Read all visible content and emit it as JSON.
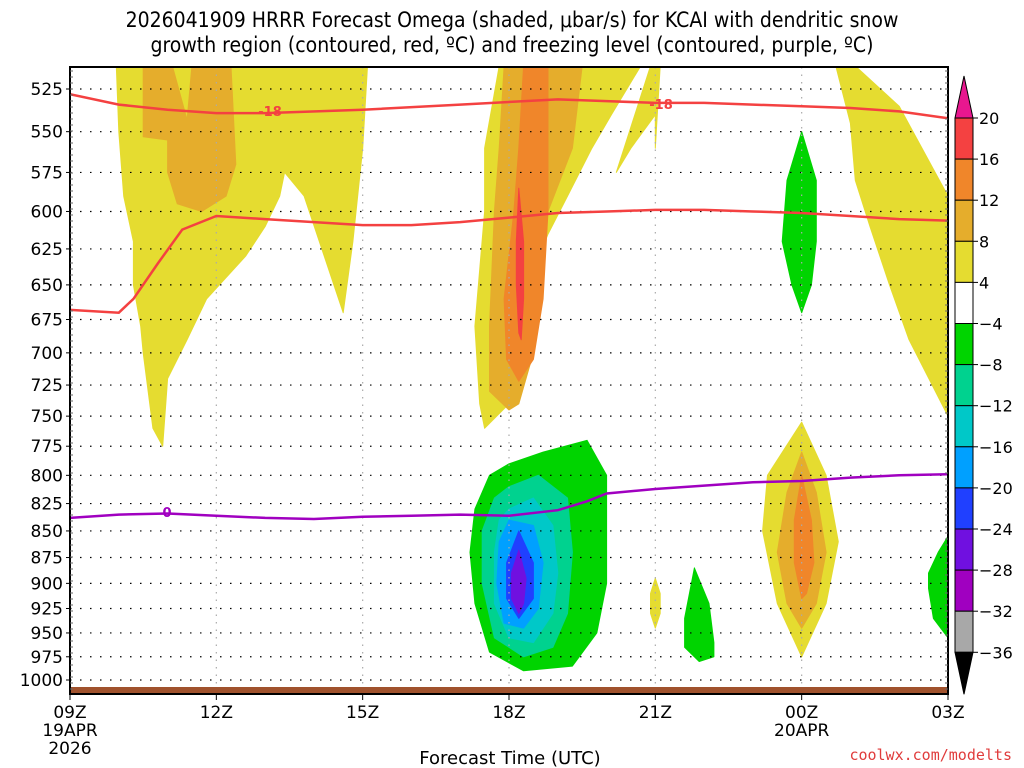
{
  "chart_data": {
    "type": "heatmap",
    "title_line1": "2026041909 HRRR Forecast Omega (shaded, μbar/s) for KCAI with dendritic snow",
    "title_line2": "growth region (contoured, red, ºC) and freezing level (contoured, purple, ºC)",
    "xlabel": "Forecast Time (UTC)",
    "ylabel": "",
    "x_hours": [
      0,
      18
    ],
    "x_ticks": [
      {
        "hour": 0,
        "label": "09Z",
        "sub1": "19APR",
        "sub2": "2026"
      },
      {
        "hour": 3,
        "label": "12Z",
        "sub1": "",
        "sub2": ""
      },
      {
        "hour": 6,
        "label": "15Z",
        "sub1": "",
        "sub2": ""
      },
      {
        "hour": 9,
        "label": "18Z",
        "sub1": "",
        "sub2": ""
      },
      {
        "hour": 12,
        "label": "21Z",
        "sub1": "",
        "sub2": ""
      },
      {
        "hour": 15,
        "label": "00Z",
        "sub1": "20APR",
        "sub2": ""
      },
      {
        "hour": 18,
        "label": "03Z",
        "sub1": "",
        "sub2": ""
      }
    ],
    "y_ticks": [
      525,
      550,
      575,
      600,
      625,
      650,
      675,
      700,
      725,
      750,
      775,
      800,
      825,
      850,
      875,
      900,
      925,
      950,
      975,
      1000
    ],
    "ylim": [
      512,
      1010
    ],
    "grid": true,
    "colorbar": {
      "levels": [
        -36,
        -32,
        -28,
        -24,
        -20,
        -16,
        -12,
        -8,
        -4,
        4,
        8,
        12,
        16,
        20
      ],
      "labels": [
        "20",
        "16",
        "12",
        "8",
        "4",
        "−4",
        "−8",
        "−12",
        "−16",
        "−20",
        "−24",
        "−28",
        "−32",
        "−36"
      ],
      "colors": {
        "above_20": "#e8178f",
        "16_20": "#f44141",
        "12_16": "#f0862a",
        "8_12": "#e5ad2c",
        "4_8": "#e5dc30",
        "-4_4": "#ffffff",
        "-8_-4": "#00d400",
        "-12_-8": "#00d28f",
        "-16_-12": "#00c8c8",
        "-20_-16": "#00a0ff",
        "-24_-20": "#2040ff",
        "-28_-24": "#7010e0",
        "-32_-28": "#a000c0",
        "-36_-32": "#a8a8a8",
        "below_-36": "#000000"
      },
      "position": "right"
    },
    "contours": {
      "dgz_label": "-18",
      "dgz_color": "#f44141",
      "dgz_upper": [
        [
          0,
          528
        ],
        [
          1,
          534
        ],
        [
          2,
          537
        ],
        [
          3,
          539
        ],
        [
          4,
          539
        ],
        [
          6,
          537
        ],
        [
          8,
          534
        ],
        [
          10,
          531
        ],
        [
          11,
          532
        ],
        [
          12,
          533
        ],
        [
          13,
          533
        ],
        [
          14,
          534
        ],
        [
          15,
          535
        ],
        [
          16,
          536
        ],
        [
          17,
          538
        ],
        [
          18,
          542
        ]
      ],
      "dgz_lower": [
        [
          0,
          668
        ],
        [
          1,
          670
        ],
        [
          1.3,
          660
        ],
        [
          1.8,
          635
        ],
        [
          2.3,
          612
        ],
        [
          3,
          603
        ],
        [
          4,
          605
        ],
        [
          6,
          609
        ],
        [
          7,
          609
        ],
        [
          8,
          607
        ],
        [
          9,
          604
        ],
        [
          10,
          601
        ],
        [
          11,
          600
        ],
        [
          12,
          599
        ],
        [
          13,
          599
        ],
        [
          14,
          600
        ],
        [
          15,
          601
        ],
        [
          16,
          603
        ],
        [
          17,
          605
        ],
        [
          18,
          606
        ]
      ],
      "freezing_label": "0",
      "freezing_color": "#a000c0",
      "freezing_level": [
        [
          0,
          838
        ],
        [
          1,
          835
        ],
        [
          2,
          834
        ],
        [
          3,
          836
        ],
        [
          4,
          838
        ],
        [
          5,
          839
        ],
        [
          6,
          837
        ],
        [
          7,
          836
        ],
        [
          8,
          835
        ],
        [
          9,
          836
        ],
        [
          10,
          831
        ],
        [
          10.6,
          823
        ],
        [
          11,
          816
        ],
        [
          12,
          812
        ],
        [
          13,
          809
        ],
        [
          14,
          806
        ],
        [
          15,
          805
        ],
        [
          16,
          802
        ],
        [
          17,
          800
        ],
        [
          18,
          799
        ]
      ]
    },
    "shaded_regions": [
      {
        "name": "yellow-upper-left",
        "level": "4_8",
        "points": [
          [
            0.95,
            512
          ],
          [
            6.1,
            512
          ],
          [
            6.0,
            560
          ],
          [
            5.8,
            620
          ],
          [
            5.6,
            670
          ],
          [
            4.8,
            590
          ],
          [
            4.4,
            575
          ],
          [
            4.3,
            590
          ],
          [
            4.0,
            610
          ],
          [
            3.6,
            630
          ],
          [
            2.8,
            660
          ],
          [
            2.4,
            690
          ],
          [
            2.0,
            720
          ],
          [
            1.9,
            775
          ],
          [
            1.7,
            760
          ],
          [
            1.5,
            700
          ],
          [
            1.45,
            680
          ],
          [
            1.3,
            650
          ],
          [
            1.3,
            620
          ],
          [
            1.1,
            590
          ],
          [
            1.0,
            550
          ]
        ]
      },
      {
        "name": "orange-upper-left",
        "level": "8_12",
        "points": [
          [
            1.5,
            512
          ],
          [
            2.1,
            512
          ],
          [
            2.4,
            543
          ],
          [
            2.5,
            512
          ],
          [
            3.3,
            512
          ],
          [
            3.4,
            570
          ],
          [
            3.2,
            590
          ],
          [
            2.7,
            600
          ],
          [
            2.2,
            595
          ],
          [
            2.0,
            575
          ],
          [
            2.0,
            555
          ],
          [
            1.5,
            553
          ]
        ]
      },
      {
        "name": "yellow-19z-column",
        "level": "4_8",
        "points": [
          [
            8.8,
            512
          ],
          [
            11.7,
            512
          ],
          [
            11.1,
            540
          ],
          [
            10.7,
            560
          ],
          [
            10.2,
            590
          ],
          [
            9.8,
            615
          ],
          [
            9.5,
            640
          ],
          [
            9.3,
            680
          ],
          [
            9.0,
            740
          ],
          [
            8.5,
            760
          ],
          [
            8.4,
            740
          ],
          [
            8.3,
            680
          ],
          [
            8.5,
            600
          ],
          [
            8.5,
            560
          ]
        ]
      },
      {
        "name": "orange-19z-column",
        "level": "8_12",
        "points": [
          [
            8.9,
            512
          ],
          [
            10.5,
            512
          ],
          [
            10.3,
            560
          ],
          [
            9.8,
            600
          ],
          [
            9.5,
            640
          ],
          [
            9.5,
            700
          ],
          [
            9.2,
            740
          ],
          [
            9.0,
            745
          ],
          [
            8.6,
            730
          ],
          [
            8.6,
            680
          ],
          [
            8.7,
            600
          ],
          [
            8.8,
            560
          ]
        ]
      },
      {
        "name": "dark-orange-19z-column",
        "level": "12_16",
        "points": [
          [
            9.3,
            512
          ],
          [
            9.8,
            512
          ],
          [
            9.8,
            600
          ],
          [
            9.7,
            660
          ],
          [
            9.5,
            705
          ],
          [
            9.2,
            722
          ],
          [
            8.95,
            705
          ],
          [
            8.9,
            660
          ],
          [
            9.1,
            600
          ],
          [
            9.2,
            560
          ]
        ]
      },
      {
        "name": "red-19z-streak",
        "level": "16_20",
        "points": [
          [
            9.2,
            585
          ],
          [
            9.3,
            620
          ],
          [
            9.3,
            660
          ],
          [
            9.25,
            690
          ],
          [
            9.2,
            685
          ],
          [
            9.15,
            650
          ],
          [
            9.15,
            620
          ]
        ]
      },
      {
        "name": "yellow-20z-wedge",
        "level": "4_8",
        "points": [
          [
            11.9,
            512
          ],
          [
            12.1,
            512
          ],
          [
            12.0,
            560
          ],
          [
            12.0,
            540
          ],
          [
            11.5,
            560
          ],
          [
            11.2,
            575
          ]
        ]
      },
      {
        "name": "yellow-right-diagonal",
        "level": "4_8",
        "points": [
          [
            15.7,
            512
          ],
          [
            16.1,
            512
          ],
          [
            17.0,
            535
          ],
          [
            18.0,
            590
          ],
          [
            18.0,
            750
          ],
          [
            17.2,
            690
          ],
          [
            16.8,
            650
          ],
          [
            16.4,
            610
          ],
          [
            16.1,
            580
          ],
          [
            16.0,
            545
          ]
        ]
      },
      {
        "name": "green-00z-column",
        "level": "-8_-4",
        "points": [
          [
            15.0,
            550
          ],
          [
            15.3,
            580
          ],
          [
            15.3,
            620
          ],
          [
            15.2,
            650
          ],
          [
            15.0,
            670
          ],
          [
            14.8,
            650
          ],
          [
            14.6,
            620
          ],
          [
            14.7,
            580
          ]
        ]
      },
      {
        "name": "green-19z-blob",
        "level": "-8_-4",
        "points": [
          [
            9.0,
            790
          ],
          [
            9.7,
            780
          ],
          [
            10.6,
            770
          ],
          [
            11.0,
            800
          ],
          [
            11.0,
            900
          ],
          [
            10.8,
            950
          ],
          [
            10.3,
            985
          ],
          [
            9.3,
            990
          ],
          [
            8.6,
            970
          ],
          [
            8.3,
            920
          ],
          [
            8.2,
            870
          ],
          [
            8.3,
            830
          ],
          [
            8.6,
            800
          ]
        ]
      },
      {
        "name": "teal-19z-blob",
        "level": "-12_-8",
        "points": [
          [
            9.0,
            810
          ],
          [
            9.6,
            800
          ],
          [
            10.2,
            820
          ],
          [
            10.3,
            870
          ],
          [
            10.2,
            930
          ],
          [
            9.9,
            965
          ],
          [
            9.3,
            975
          ],
          [
            8.7,
            955
          ],
          [
            8.45,
            900
          ],
          [
            8.45,
            850
          ],
          [
            8.7,
            820
          ]
        ]
      },
      {
        "name": "cyan-19z-blob",
        "level": "-16_-12",
        "points": [
          [
            9.0,
            830
          ],
          [
            9.5,
            820
          ],
          [
            9.9,
            845
          ],
          [
            10.0,
            890
          ],
          [
            9.9,
            930
          ],
          [
            9.5,
            960
          ],
          [
            9.0,
            955
          ],
          [
            8.7,
            920
          ],
          [
            8.7,
            870
          ],
          [
            8.8,
            840
          ]
        ]
      },
      {
        "name": "lightblue-19z-blob",
        "level": "-20_-16",
        "points": [
          [
            9.0,
            840
          ],
          [
            9.5,
            845
          ],
          [
            9.7,
            880
          ],
          [
            9.6,
            925
          ],
          [
            9.3,
            945
          ],
          [
            8.9,
            940
          ],
          [
            8.75,
            900
          ],
          [
            8.8,
            860
          ]
        ]
      },
      {
        "name": "blue-19z-blob",
        "level": "-24_-20",
        "points": [
          [
            9.2,
            850
          ],
          [
            9.5,
            880
          ],
          [
            9.5,
            915
          ],
          [
            9.2,
            935
          ],
          [
            8.95,
            915
          ],
          [
            8.95,
            880
          ]
        ]
      },
      {
        "name": "purple-19z-blob",
        "level": "-28_-24",
        "points": [
          [
            9.2,
            868
          ],
          [
            9.35,
            895
          ],
          [
            9.3,
            920
          ],
          [
            9.2,
            930
          ],
          [
            9.05,
            915
          ],
          [
            9.05,
            890
          ]
        ]
      },
      {
        "name": "yellow-21z-sliver",
        "level": "4_8",
        "points": [
          [
            12.0,
            895
          ],
          [
            12.1,
            910
          ],
          [
            12.1,
            930
          ],
          [
            12.0,
            945
          ],
          [
            11.9,
            930
          ],
          [
            11.9,
            910
          ]
        ]
      },
      {
        "name": "green-22z-blob",
        "level": "-8_-4",
        "points": [
          [
            12.8,
            885
          ],
          [
            13.1,
            920
          ],
          [
            13.2,
            960
          ],
          [
            13.2,
            975
          ],
          [
            12.9,
            980
          ],
          [
            12.6,
            965
          ],
          [
            12.6,
            935
          ]
        ]
      },
      {
        "name": "yellow-00z-blob",
        "level": "4_8",
        "points": [
          [
            15.0,
            755
          ],
          [
            15.5,
            800
          ],
          [
            15.75,
            860
          ],
          [
            15.5,
            920
          ],
          [
            15.0,
            975
          ],
          [
            14.5,
            920
          ],
          [
            14.2,
            850
          ],
          [
            14.3,
            800
          ]
        ]
      },
      {
        "name": "orange-00z-blob",
        "level": "8_12",
        "points": [
          [
            15.0,
            780
          ],
          [
            15.3,
            815
          ],
          [
            15.5,
            870
          ],
          [
            15.3,
            920
          ],
          [
            15.0,
            945
          ],
          [
            14.7,
            920
          ],
          [
            14.5,
            870
          ],
          [
            14.7,
            815
          ]
        ]
      },
      {
        "name": "dark-orange-00z-blob",
        "level": "12_16",
        "points": [
          [
            15.0,
            800
          ],
          [
            15.2,
            840
          ],
          [
            15.25,
            880
          ],
          [
            15.1,
            910
          ],
          [
            15.0,
            915
          ],
          [
            14.85,
            880
          ],
          [
            14.85,
            840
          ]
        ]
      },
      {
        "name": "green-right-edge",
        "level": "-8_-4",
        "points": [
          [
            18.0,
            855
          ],
          [
            18.0,
            955
          ],
          [
            17.7,
            935
          ],
          [
            17.6,
            905
          ],
          [
            17.6,
            890
          ],
          [
            17.8,
            870
          ]
        ]
      }
    ],
    "ground": {
      "color": "#a0522d",
      "pressure": 1005
    }
  },
  "credit": "coolwx.com/modelts"
}
